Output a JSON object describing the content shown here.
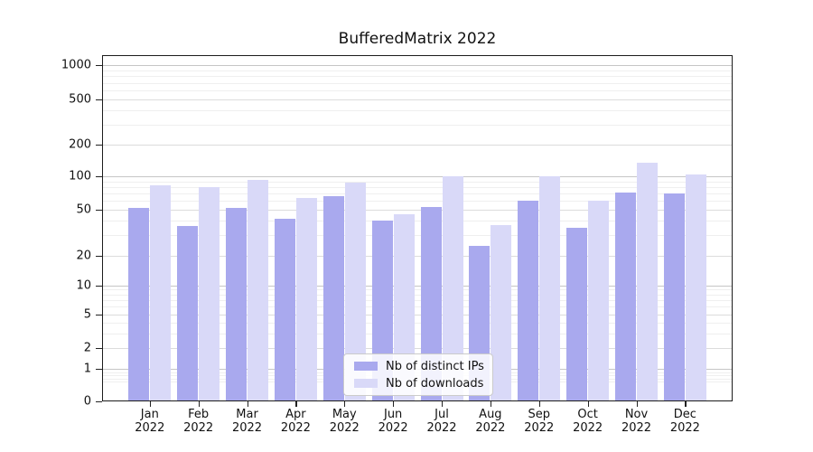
{
  "figure": {
    "title": "BufferedMatrix 2022"
  },
  "chart_data": {
    "type": "bar",
    "title": "BufferedMatrix 2022",
    "categories": [
      "Jan 2022",
      "Feb 2022",
      "Mar 2022",
      "Apr 2022",
      "May 2022",
      "Jun 2022",
      "Jul 2022",
      "Aug 2022",
      "Sep 2022",
      "Oct 2022",
      "Nov 2022",
      "Dec 2022"
    ],
    "months": [
      "Jan",
      "Feb",
      "Mar",
      "Apr",
      "May",
      "Jun",
      "Jul",
      "Aug",
      "Sep",
      "Oct",
      "Nov",
      "Dec"
    ],
    "year": "2022",
    "series": [
      {
        "name": "Nb of distinct IPs",
        "color": "#a9a9ee",
        "values": [
          52,
          36,
          52,
          42,
          66,
          40,
          53,
          24,
          60,
          35,
          71,
          70
        ]
      },
      {
        "name": "Nb of downloads",
        "color": "#d9d9f8",
        "values": [
          83,
          80,
          92,
          64,
          88,
          46,
          100,
          37,
          100,
          60,
          135,
          104
        ]
      }
    ],
    "yscale": "symlog",
    "yticks": [
      0,
      1,
      2,
      5,
      10,
      20,
      50,
      100,
      200,
      500,
      1000
    ],
    "ylim": [
      0,
      1200
    ],
    "xlabel": "",
    "ylabel": "",
    "grid": true,
    "legend_position": "lower center",
    "colors": {
      "grid_major": "#c6c6c6",
      "grid_labeled": "#dcdcdc",
      "grid_minor": "#efefef",
      "spine": "#1c1c1c"
    }
  },
  "legend": {
    "items": [
      {
        "label": "Nb of distinct IPs",
        "color": "#a9a9ee"
      },
      {
        "label": "Nb of downloads",
        "color": "#d9d9f8"
      }
    ]
  }
}
